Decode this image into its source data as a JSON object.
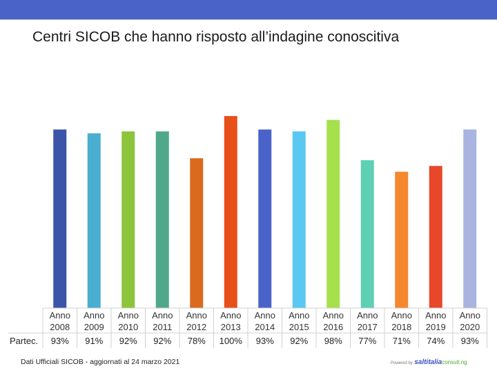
{
  "header": {
    "title": "Centri SICOB che hanno risposto all’indagine conoscitiva"
  },
  "chart_data": {
    "type": "bar",
    "title": "Centri SICOB che hanno risposto all’indagine conoscitiva",
    "categories": [
      [
        "Anno",
        "2008"
      ],
      [
        "Anno",
        "2009"
      ],
      [
        "Anno",
        "2010"
      ],
      [
        "Anno",
        "2011"
      ],
      [
        "Anno",
        "2012"
      ],
      [
        "Anno",
        "2013"
      ],
      [
        "Anno",
        "2014"
      ],
      [
        "Anno",
        "2015"
      ],
      [
        "Anno",
        "2016"
      ],
      [
        "Anno",
        "2017"
      ],
      [
        "Anno",
        "2018"
      ],
      [
        "Anno",
        "2019"
      ],
      [
        "Anno",
        "2020"
      ]
    ],
    "row_label": "Partec.",
    "values": [
      93,
      91,
      92,
      92,
      78,
      100,
      93,
      92,
      98,
      77,
      71,
      74,
      93
    ],
    "value_labels": [
      "93%",
      "91%",
      "92%",
      "92%",
      "78%",
      "100%",
      "93%",
      "92%",
      "98%",
      "77%",
      "71%",
      "74%",
      "93%"
    ],
    "colors": [
      "#3b55a8",
      "#4aaed0",
      "#8cc43c",
      "#4fa88a",
      "#d96a1e",
      "#e8501a",
      "#4a63c9",
      "#5bc8f2",
      "#a6e04c",
      "#5ed0b4",
      "#f5872e",
      "#e8472a",
      "#a9b4e0"
    ],
    "ylim": [
      0,
      100
    ],
    "grid": false,
    "legend": "none"
  },
  "footer": {
    "source": "Dati Ufficiali SICOB - aggiornati al 24 marzo 2021",
    "brand_prefix": "Powered by",
    "brand_main": "saltitalia",
    "brand_suffix": "consult.ng"
  }
}
